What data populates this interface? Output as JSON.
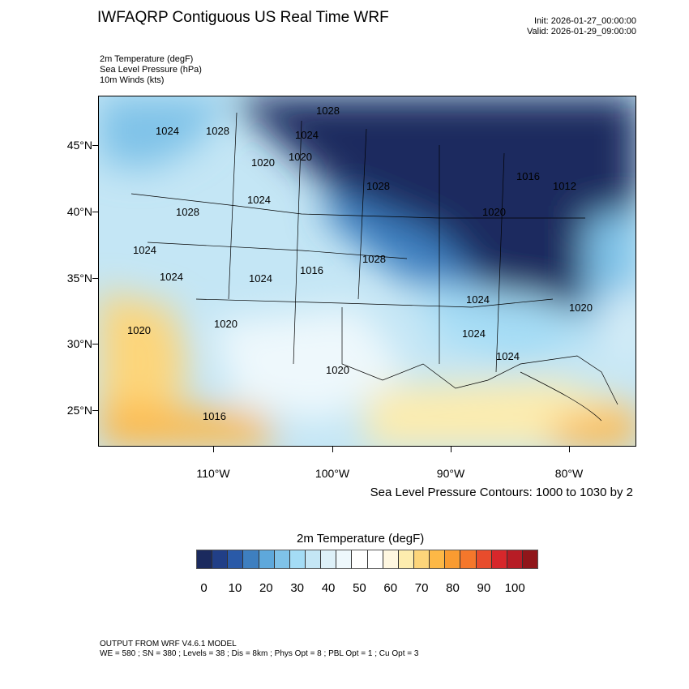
{
  "header": {
    "title": "IWFAQRP Contiguous US Real Time WRF",
    "init": "Init: 2026-01-27_00:00:00",
    "valid": "Valid: 2026-01-29_09:00:00"
  },
  "fields": [
    "2m Temperature   (degF)",
    "Sea Level Pressure   (hPa)",
    "10m Winds   (kts)"
  ],
  "map": {
    "lat_labels": [
      "45°N",
      "40°N",
      "35°N",
      "30°N",
      "25°N"
    ],
    "lon_labels": [
      "110°W",
      "100°W",
      "90°W",
      "80°W"
    ],
    "pressure_labels": [
      "1024",
      "1028",
      "1028",
      "1024",
      "1020",
      "1020",
      "1028",
      "1024",
      "1028",
      "1020",
      "1016",
      "1012",
      "1024",
      "1024",
      "1028",
      "1016",
      "1024",
      "1024",
      "1020",
      "1020",
      "1020",
      "1024",
      "1024",
      "1020",
      "1016"
    ],
    "slp_note": "Sea Level Pressure Contours: 1000 to 1030 by 2"
  },
  "colorbar": {
    "title": "2m Temperature  (degF)",
    "colors": [
      "#1b2a5e",
      "#213f87",
      "#2a5aa8",
      "#3e7fc0",
      "#5ea8db",
      "#7fc2e8",
      "#a4dcf5",
      "#c4e6f5",
      "#ddf0f8",
      "#eef8fc",
      "#ffffff",
      "#ffffff",
      "#fff7e0",
      "#fdecae",
      "#fdd57a",
      "#fdb846",
      "#f99b31",
      "#f5772b",
      "#e84c2c",
      "#d7272b",
      "#b71c25",
      "#90161a"
    ],
    "labels": [
      "0",
      "10",
      "20",
      "30",
      "40",
      "50",
      "60",
      "70",
      "80",
      "90",
      "100"
    ]
  },
  "footer": {
    "line1": "OUTPUT FROM WRF V4.6.1 MODEL",
    "line2": "WE = 580 ; SN = 380 ; Levels = 38 ; Dis = 8km ; Phys Opt = 8 ; PBL Opt = 1 ; Cu Opt = 3"
  }
}
